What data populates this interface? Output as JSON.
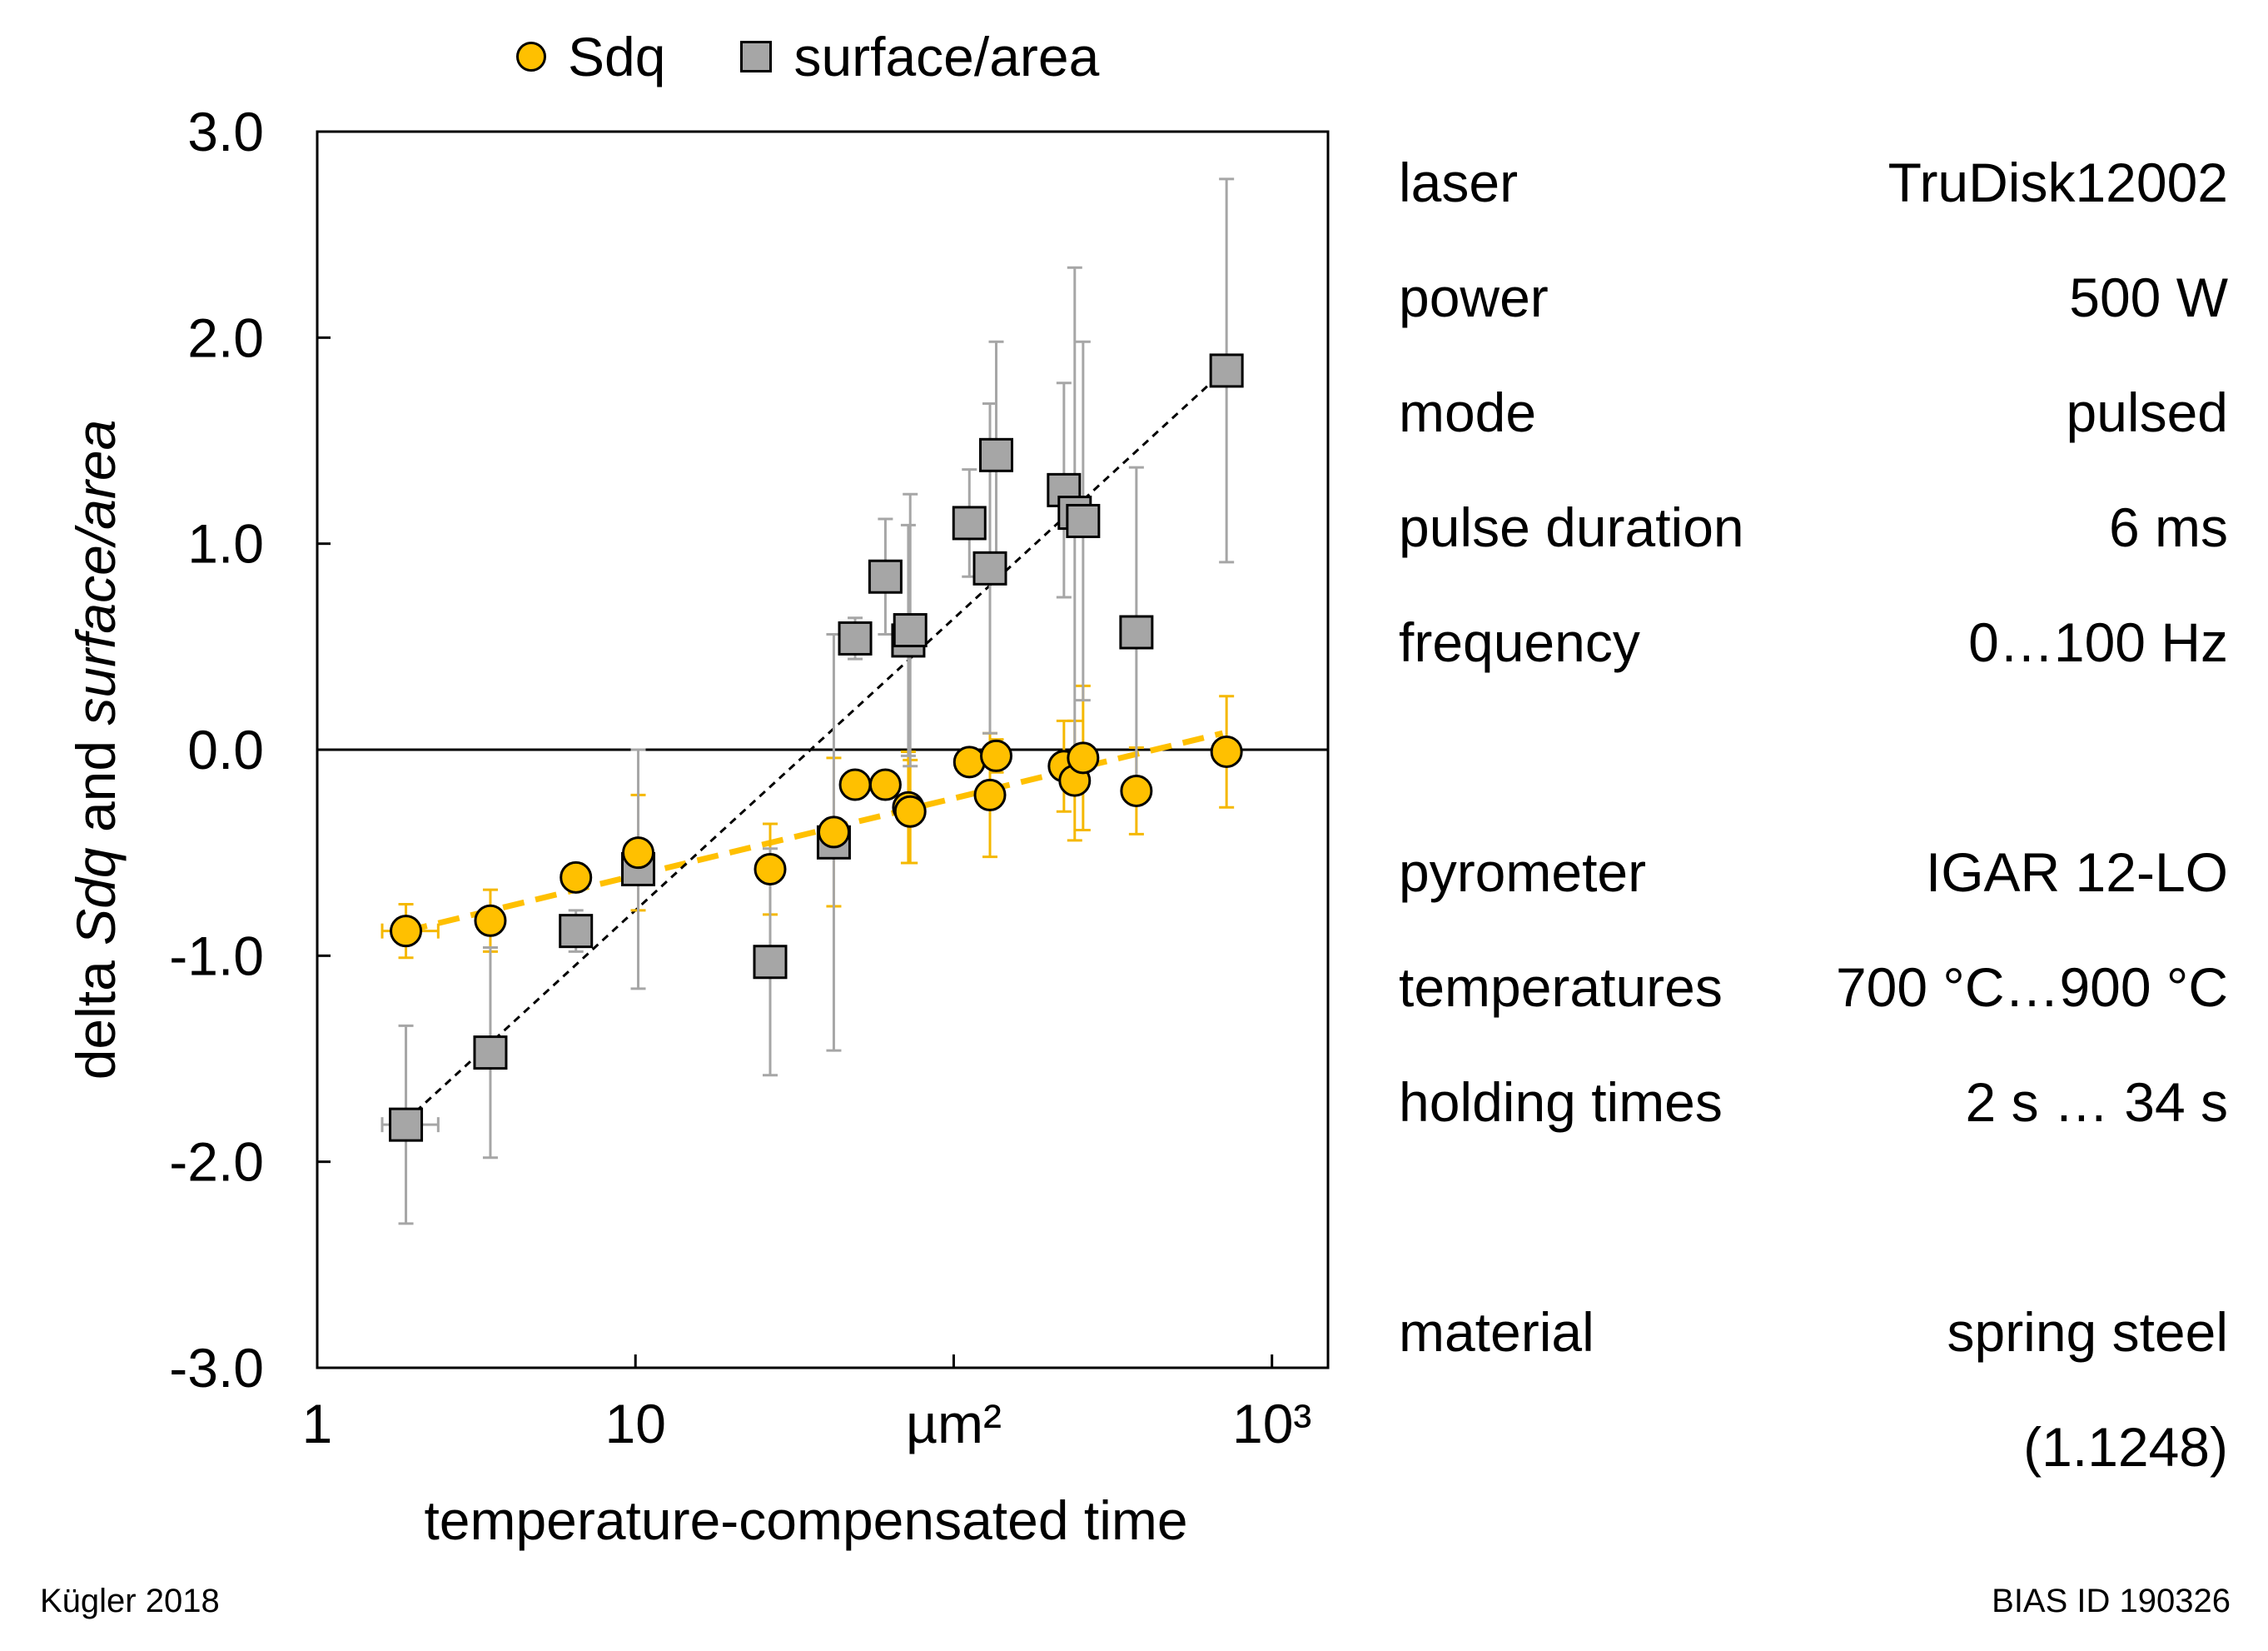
{
  "chart_data": {
    "type": "scatter",
    "x_scale": "log",
    "xlim": [
      1,
      1500
    ],
    "ylim": [
      -3.0,
      3.0
    ],
    "xlabel": "temperature-compensated time",
    "ylabel_parts": [
      {
        "text": "delta ",
        "italic": false
      },
      {
        "text": "Sdq",
        "italic": true
      },
      {
        "text": " and ",
        "italic": false
      },
      {
        "text": "surface/area",
        "italic": true
      }
    ],
    "x_ticks": [
      {
        "value": 1,
        "label": "1"
      },
      {
        "value": 10,
        "label": "10"
      },
      {
        "value": 100,
        "label": "µm²"
      },
      {
        "value": 1000,
        "label": "10³"
      }
    ],
    "y_ticks": [
      {
        "value": 3.0,
        "label": "3.0"
      },
      {
        "value": 2.0,
        "label": "2.0"
      },
      {
        "value": 1.0,
        "label": "1.0"
      },
      {
        "value": 0.0,
        "label": "0.0"
      },
      {
        "value": -1.0,
        "label": "-1.0"
      },
      {
        "value": -2.0,
        "label": "-2.0"
      },
      {
        "value": -3.0,
        "label": "-3.0"
      }
    ],
    "grid": false,
    "zero_line": true,
    "legend_position": "top",
    "series": [
      {
        "name": "Sdq",
        "marker": "circle",
        "color": "#FFC000",
        "error_color": "#F5B800",
        "trend": {
          "x": [
            1.9,
            700
          ],
          "y": [
            -0.88,
            0.08
          ],
          "style": "dashed",
          "color": "#FFC000"
        },
        "points": [
          {
            "x": 1.9,
            "y": -0.88,
            "err": 0.13,
            "xerr": [
              1.6,
              2.4
            ]
          },
          {
            "x": 3.5,
            "y": -0.83,
            "err": 0.15
          },
          {
            "x": 6.5,
            "y": -0.62,
            "err": 0.05
          },
          {
            "x": 10.2,
            "y": -0.5,
            "err": 0.28
          },
          {
            "x": 26.5,
            "y": -0.58,
            "err": 0.22
          },
          {
            "x": 42,
            "y": -0.4,
            "err": 0.36
          },
          {
            "x": 49,
            "y": -0.17,
            "err": 0.05
          },
          {
            "x": 61,
            "y": -0.17,
            "err": 0.05
          },
          {
            "x": 72,
            "y": -0.28,
            "err": 0.27
          },
          {
            "x": 73,
            "y": -0.3,
            "err": 0.25
          },
          {
            "x": 112,
            "y": -0.06,
            "err": 0.04
          },
          {
            "x": 130,
            "y": -0.22,
            "err": 0.3
          },
          {
            "x": 136,
            "y": -0.03,
            "err": 0.08
          },
          {
            "x": 222,
            "y": -0.08,
            "err": 0.22
          },
          {
            "x": 240,
            "y": -0.15,
            "err": 0.29
          },
          {
            "x": 255,
            "y": -0.04,
            "err": 0.35
          },
          {
            "x": 375,
            "y": -0.2,
            "err": 0.21
          },
          {
            "x": 720,
            "y": -0.01,
            "err": 0.27
          }
        ]
      },
      {
        "name": "surface/area",
        "marker": "square",
        "color": "#A6A6A6",
        "error_color": "#A6A6A6",
        "trend": {
          "x": [
            1.9,
            720
          ],
          "y": [
            -1.8,
            1.85
          ],
          "style": "dotted",
          "color": "#000000"
        },
        "points": [
          {
            "x": 1.9,
            "y": -1.82,
            "err": 0.48,
            "xerr": [
              1.6,
              2.4
            ]
          },
          {
            "x": 3.5,
            "y": -1.47,
            "err": 0.51
          },
          {
            "x": 6.5,
            "y": -0.88,
            "err": 0.1
          },
          {
            "x": 10.2,
            "y": -0.58,
            "err": 0.58
          },
          {
            "x": 26.5,
            "y": -1.03,
            "err": 0.55
          },
          {
            "x": 42,
            "y": -0.45,
            "err": 1.01
          },
          {
            "x": 49,
            "y": 0.54,
            "err": 0.1
          },
          {
            "x": 61,
            "y": 0.84,
            "err": 0.28
          },
          {
            "x": 72,
            "y": 0.53,
            "err": 0.56
          },
          {
            "x": 73,
            "y": 0.58,
            "err": 0.66
          },
          {
            "x": 112,
            "y": 1.1,
            "err": 0.26
          },
          {
            "x": 130,
            "y": 0.88,
            "err": 0.8
          },
          {
            "x": 136,
            "y": 1.43,
            "err": 0.55
          },
          {
            "x": 222,
            "y": 1.26,
            "err": 0.52
          },
          {
            "x": 240,
            "y": 1.15,
            "err": 1.19
          },
          {
            "x": 255,
            "y": 1.11,
            "err": 0.87
          },
          {
            "x": 375,
            "y": 0.57,
            "err": 0.8
          },
          {
            "x": 720,
            "y": 1.84,
            "err": 0.93
          }
        ]
      }
    ]
  },
  "legend": {
    "items": [
      {
        "label": "Sdq"
      },
      {
        "label": "surface/area"
      }
    ]
  },
  "info": {
    "rows": [
      {
        "label": "laser",
        "value": "TruDisk12002"
      },
      {
        "label": "power",
        "value": "500 W"
      },
      {
        "label": "mode",
        "value": "pulsed"
      },
      {
        "label": "pulse duration",
        "value": "6 ms"
      },
      {
        "label": "frequency",
        "value": "0…100 Hz"
      },
      {
        "label": "",
        "value": ""
      },
      {
        "label": "pyrometer",
        "value": "IGAR 12-LO"
      },
      {
        "label": "temperatures",
        "value": "700 °C…900 °C"
      },
      {
        "label": "holding times",
        "value": "2 s … 34 s"
      },
      {
        "label": "",
        "value": ""
      },
      {
        "label": "material",
        "value": "spring steel"
      },
      {
        "label": "",
        "value": "(1.1248)"
      }
    ]
  },
  "footer": {
    "left": "Kügler 2018",
    "right": "BIAS ID 190326"
  }
}
